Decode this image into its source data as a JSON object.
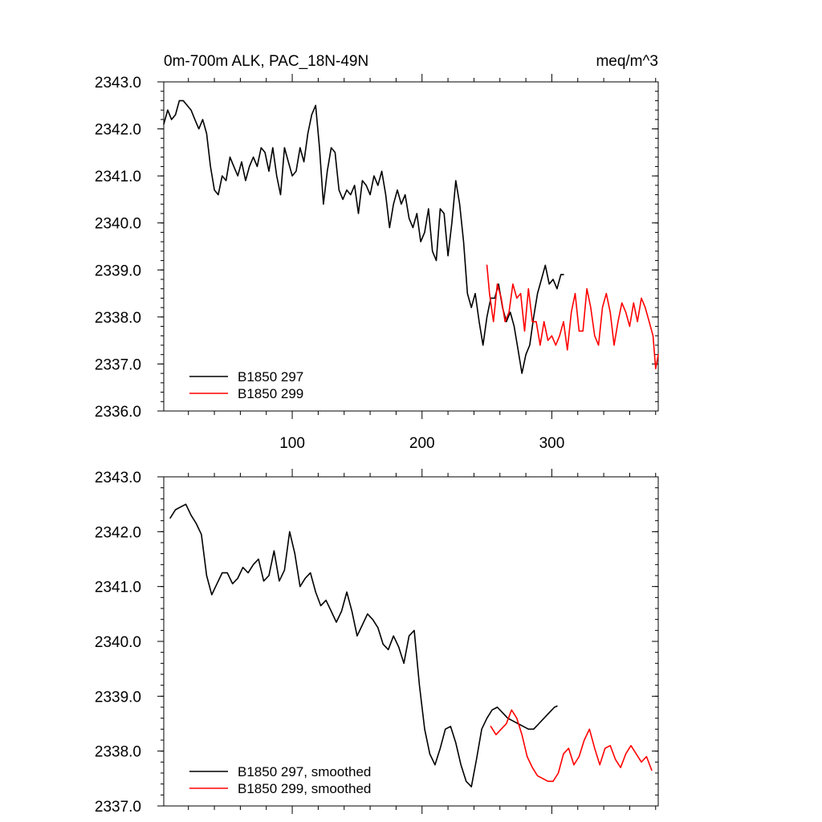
{
  "chart_data": [
    {
      "type": "line",
      "title_left": "0m-700m ALK, PAC_18N-49N",
      "title_right": "meq/m^3",
      "xlim": [
        1,
        382
      ],
      "ylim": [
        2336.0,
        2343.0
      ],
      "xticks": [
        100,
        200,
        300
      ],
      "xtick_labels": [
        "100",
        "200",
        "300"
      ],
      "yticks": [
        2336.0,
        2337.0,
        2338.0,
        2339.0,
        2340.0,
        2341.0,
        2342.0,
        2343.0
      ],
      "ytick_labels": [
        "2336.0",
        "2337.0",
        "2338.0",
        "2339.0",
        "2340.0",
        "2341.0",
        "2342.0",
        "2343.0"
      ],
      "legend": "bottom-left",
      "series": [
        {
          "name": "B1850 297",
          "color": "#000000",
          "x": [
            1,
            4,
            7,
            10,
            13,
            16,
            19,
            22,
            25,
            28,
            31,
            34,
            37,
            40,
            43,
            46,
            49,
            52,
            55,
            58,
            61,
            64,
            67,
            70,
            73,
            76,
            79,
            82,
            85,
            88,
            91,
            94,
            97,
            100,
            103,
            106,
            109,
            112,
            115,
            118,
            121,
            124,
            127,
            130,
            133,
            136,
            139,
            142,
            145,
            148,
            151,
            154,
            157,
            160,
            163,
            166,
            169,
            172,
            175,
            178,
            181,
            184,
            187,
            190,
            193,
            196,
            199,
            202,
            205,
            208,
            211,
            214,
            217,
            220,
            223,
            226,
            229,
            232,
            235,
            238,
            241,
            244,
            247,
            250,
            253,
            256,
            259,
            262,
            265,
            268,
            271,
            274,
            277,
            280,
            283,
            286,
            289,
            292,
            295,
            298,
            301,
            304,
            307,
            309
          ],
          "y": [
            2342.1,
            2342.4,
            2342.2,
            2342.3,
            2342.6,
            2342.6,
            2342.5,
            2342.4,
            2342.2,
            2342.0,
            2342.2,
            2341.9,
            2341.2,
            2340.7,
            2340.6,
            2341.0,
            2340.9,
            2341.4,
            2341.2,
            2341.0,
            2341.3,
            2340.9,
            2341.2,
            2341.4,
            2341.2,
            2341.6,
            2341.5,
            2341.1,
            2341.6,
            2341.0,
            2340.6,
            2341.6,
            2341.3,
            2341.0,
            2341.1,
            2341.6,
            2341.3,
            2341.9,
            2342.3,
            2342.5,
            2341.6,
            2340.4,
            2341.1,
            2341.6,
            2341.5,
            2340.7,
            2340.5,
            2340.7,
            2340.6,
            2340.8,
            2340.2,
            2340.9,
            2340.8,
            2340.6,
            2341.0,
            2340.8,
            2341.1,
            2340.6,
            2339.9,
            2340.4,
            2340.7,
            2340.4,
            2340.6,
            2340.1,
            2339.9,
            2340.2,
            2339.6,
            2339.8,
            2340.3,
            2339.4,
            2339.2,
            2340.3,
            2340.2,
            2339.3,
            2340.0,
            2340.9,
            2340.4,
            2339.6,
            2338.5,
            2338.2,
            2338.5,
            2337.9,
            2337.4,
            2338.0,
            2338.4,
            2338.4,
            2338.7,
            2338.2,
            2337.9,
            2338.1,
            2337.8,
            2337.3,
            2336.8,
            2337.2,
            2337.4,
            2338.0,
            2338.5,
            2338.8,
            2339.1,
            2338.7,
            2338.8,
            2338.6,
            2338.9,
            2338.9
          ]
        },
        {
          "name": "B1850 299",
          "color": "#ff0000",
          "x": [
            250,
            252,
            255,
            258,
            261,
            264,
            267,
            270,
            273,
            276,
            279,
            282,
            285,
            288,
            291,
            294,
            297,
            300,
            303,
            306,
            309,
            312,
            315,
            318,
            321,
            324,
            327,
            330,
            333,
            336,
            339,
            342,
            345,
            348,
            351,
            354,
            357,
            360,
            363,
            366,
            369,
            372,
            375,
            378,
            380,
            382
          ],
          "y": [
            2339.1,
            2338.5,
            2337.9,
            2338.7,
            2338.4,
            2337.9,
            2338.1,
            2338.7,
            2338.4,
            2338.5,
            2337.7,
            2338.6,
            2337.9,
            2337.9,
            2337.4,
            2337.9,
            2337.5,
            2337.6,
            2337.4,
            2337.6,
            2337.9,
            2337.3,
            2338.1,
            2338.5,
            2337.7,
            2337.7,
            2338.6,
            2338.2,
            2337.6,
            2337.4,
            2338.2,
            2338.5,
            2338.1,
            2337.4,
            2337.9,
            2338.3,
            2338.1,
            2337.8,
            2338.3,
            2337.9,
            2338.4,
            2338.2,
            2337.9,
            2337.6,
            2336.9,
            2337.2
          ]
        }
      ]
    },
    {
      "type": "line",
      "xlim": [
        1,
        382
      ],
      "ylim": [
        2337.0,
        2343.0
      ],
      "xticks": [
        100,
        200,
        300
      ],
      "xtick_labels": [],
      "yticks": [
        2337.0,
        2338.0,
        2339.0,
        2340.0,
        2341.0,
        2342.0,
        2343.0
      ],
      "ytick_labels": [
        "2337.0",
        "2338.0",
        "2339.0",
        "2340.0",
        "2341.0",
        "2342.0",
        "2343.0"
      ],
      "legend": "bottom-left",
      "series": [
        {
          "name": "B1850 297, smoothed",
          "color": "#000000",
          "x": [
            6,
            10,
            14,
            18,
            22,
            26,
            30,
            34,
            38,
            42,
            46,
            50,
            54,
            58,
            62,
            66,
            70,
            74,
            78,
            82,
            86,
            90,
            94,
            98,
            102,
            106,
            110,
            114,
            118,
            122,
            126,
            130,
            134,
            138,
            142,
            146,
            150,
            154,
            158,
            162,
            166,
            170,
            174,
            178,
            182,
            186,
            190,
            194,
            198,
            202,
            206,
            210,
            214,
            218,
            222,
            226,
            230,
            234,
            238,
            242,
            246,
            250,
            254,
            258,
            262,
            266,
            270,
            274,
            278,
            282,
            286,
            290,
            294,
            298,
            302,
            304
          ],
          "y": [
            2342.25,
            2342.4,
            2342.45,
            2342.5,
            2342.3,
            2342.15,
            2341.95,
            2341.2,
            2340.85,
            2341.05,
            2341.25,
            2341.25,
            2341.05,
            2341.15,
            2341.35,
            2341.25,
            2341.4,
            2341.5,
            2341.1,
            2341.2,
            2341.65,
            2341.1,
            2341.3,
            2342.0,
            2341.6,
            2341.0,
            2341.15,
            2341.25,
            2340.9,
            2340.65,
            2340.75,
            2340.55,
            2340.35,
            2340.55,
            2340.9,
            2340.55,
            2340.1,
            2340.3,
            2340.5,
            2340.4,
            2340.25,
            2339.95,
            2339.85,
            2340.1,
            2339.9,
            2339.6,
            2340.1,
            2340.2,
            2339.2,
            2338.4,
            2337.95,
            2337.75,
            2338.05,
            2338.4,
            2338.45,
            2338.15,
            2337.75,
            2337.45,
            2337.35,
            2337.85,
            2338.4,
            2338.6,
            2338.75,
            2338.8,
            2338.7,
            2338.6,
            2338.55,
            2338.5,
            2338.45,
            2338.4,
            2338.4,
            2338.5,
            2338.6,
            2338.7,
            2338.8,
            2338.82
          ]
        },
        {
          "name": "B1850 299, smoothed",
          "color": "#ff0000",
          "x": [
            253,
            257,
            261,
            265,
            269,
            273,
            277,
            281,
            285,
            289,
            293,
            297,
            301,
            305,
            309,
            313,
            317,
            321,
            325,
            329,
            333,
            337,
            341,
            345,
            349,
            353,
            357,
            361,
            365,
            369,
            373,
            377
          ],
          "y": [
            2338.45,
            2338.3,
            2338.4,
            2338.5,
            2338.75,
            2338.6,
            2338.3,
            2337.9,
            2337.7,
            2337.55,
            2337.5,
            2337.45,
            2337.45,
            2337.6,
            2337.95,
            2338.05,
            2337.75,
            2337.9,
            2338.2,
            2338.4,
            2338.05,
            2337.75,
            2338.05,
            2338.1,
            2337.85,
            2337.7,
            2337.95,
            2338.1,
            2337.95,
            2337.8,
            2337.9,
            2337.65
          ]
        }
      ]
    }
  ]
}
